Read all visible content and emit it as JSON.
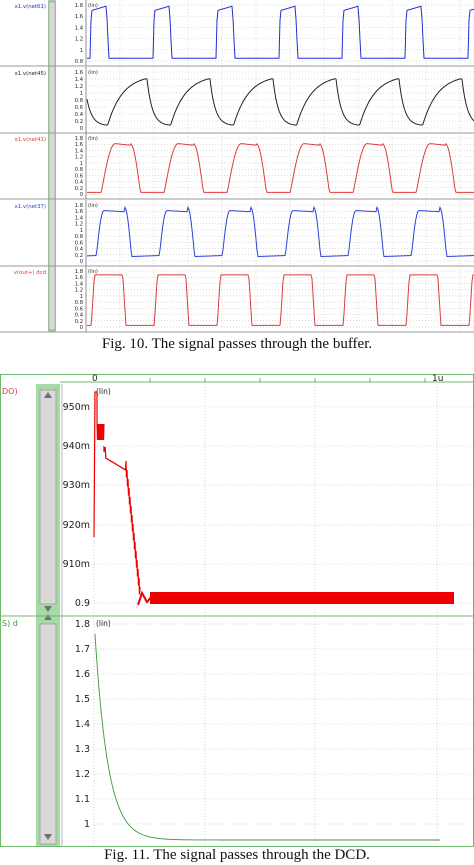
{
  "figure10": {
    "caption": "Fig. 10. The signal passes through the buffer.",
    "scale_tag": "(lin)",
    "panels": [
      {
        "signal": "x1.v(net61)",
        "color": "#1f2fd6",
        "yticks": [
          "1.8",
          "1.6",
          "1.4",
          "1.2",
          "1",
          "0.8"
        ],
        "ylim": [
          0.8,
          1.8
        ]
      },
      {
        "signal": "x1.v(net45)",
        "color": "#222222",
        "yticks": [
          "1.6",
          "1.4",
          "1.2",
          "1",
          "0.8",
          "0.6",
          "0.4",
          "0.2",
          "0"
        ],
        "ylim": [
          0,
          1.7
        ]
      },
      {
        "signal": "x1.v(net41)",
        "color": "#e03a3a",
        "yticks": [
          "1.8",
          "1.6",
          "1.4",
          "1.2",
          "1",
          "0.8",
          "0.6",
          "0.4",
          "0.2",
          "0"
        ],
        "ylim": [
          0,
          1.8
        ]
      },
      {
        "signal": "x1.v(net37)",
        "color": "#2a3fe0",
        "yticks": [
          "1.8",
          "1.6",
          "1.4",
          "1.2",
          "1",
          "0.8",
          "0.6",
          "0.4",
          "0.2",
          "0"
        ],
        "ylim": [
          0,
          1.8
        ]
      },
      {
        "signal": "v(out+) dcd",
        "color": "#e03a3a",
        "yticks": [
          "1.8",
          "1.6",
          "1.4",
          "1.2",
          "1",
          "0.8",
          "0.6",
          "0.4",
          "0.2",
          "0"
        ],
        "ylim": [
          0,
          1.8
        ]
      }
    ]
  },
  "figure11": {
    "caption": "Fig. 11. The signal passes through the DCD.",
    "xtick_start": "0",
    "xtick_end": "1u",
    "top_panel": {
      "label_fragment": "DO)",
      "scale_tag": "(lin)",
      "color": "#ee0000",
      "yticks": [
        "950m",
        "940m",
        "930m",
        "920m",
        "910m",
        "0.9"
      ]
    },
    "bottom_panel": {
      "label_fragment": "S) d",
      "scale_tag": "(lin)",
      "color": "#3a9a3a",
      "yticks": [
        "1.8",
        "1.7",
        "1.6",
        "1.5",
        "1.4",
        "1.3",
        "1.2",
        "1.1",
        "1"
      ]
    }
  },
  "colors": {
    "grid": "#b8b8b8",
    "frame": "#6fb86f",
    "scrollbar_track": "#8fcf8f",
    "scrollbar_thumb": "#d4d4d4"
  }
}
